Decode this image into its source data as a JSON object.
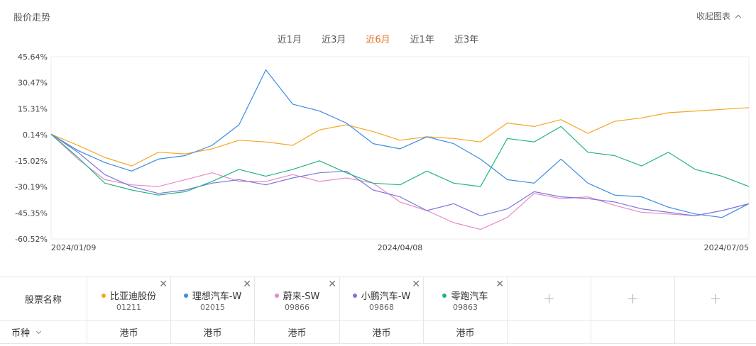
{
  "header": {
    "title": "股价走势",
    "collapse_label": "收起图表"
  },
  "tabs": [
    {
      "label": "近1月",
      "active": false
    },
    {
      "label": "近3月",
      "active": false
    },
    {
      "label": "近6月",
      "active": true
    },
    {
      "label": "近1年",
      "active": false
    },
    {
      "label": "近3年",
      "active": false
    }
  ],
  "colors": {
    "accent": "#e86f22",
    "grid": "#e6e6e6"
  },
  "chart_data": {
    "type": "line",
    "y_unit": "%",
    "y_ticks": [
      "45.64%",
      "30.47%",
      "15.31%",
      "0.14%",
      "-15.02%",
      "-30.19%",
      "-45.35%",
      "-60.52%"
    ],
    "y_tick_values": [
      45.64,
      30.47,
      15.31,
      0.14,
      -15.02,
      -30.19,
      -45.35,
      -60.52
    ],
    "ylim": [
      -60.52,
      45.64
    ],
    "x_ticks": [
      "2024/01/09",
      "2024/04/08",
      "2024/07/05"
    ],
    "x": [
      "2024/01/09",
      "2024/01/16",
      "2024/01/23",
      "2024/01/30",
      "2024/02/06",
      "2024/02/13",
      "2024/02/20",
      "2024/02/27",
      "2024/03/05",
      "2024/03/12",
      "2024/03/19",
      "2024/03/26",
      "2024/04/02",
      "2024/04/08",
      "2024/04/15",
      "2024/04/22",
      "2024/04/29",
      "2024/05/06",
      "2024/05/13",
      "2024/05/20",
      "2024/05/27",
      "2024/06/03",
      "2024/06/10",
      "2024/06/17",
      "2024/06/24",
      "2024/07/01",
      "2024/07/05"
    ],
    "series": [
      {
        "name": "比亚迪股份",
        "color": "#f5a623",
        "values": [
          0.5,
          -6,
          -13,
          -18,
          -10,
          -11,
          -8,
          -3,
          -4,
          -6,
          3,
          6,
          2,
          -3,
          -1,
          -2,
          -4,
          7,
          5,
          9,
          1,
          8,
          10,
          13,
          14,
          15,
          16
        ]
      },
      {
        "name": "理想汽车-W",
        "color": "#3b8ce3",
        "values": [
          0.5,
          -9,
          -16,
          -21,
          -14,
          -12,
          -6,
          6,
          38,
          18,
          14,
          7,
          -5,
          -8,
          -1,
          -5,
          -14,
          -26,
          -28,
          -14,
          -28,
          -35,
          -36,
          -42,
          -46,
          -48,
          -40
        ]
      },
      {
        "name": "蔚来-SW",
        "color": "#e889c7",
        "values": [
          0.5,
          -14,
          -26,
          -29,
          -30,
          -26,
          -22,
          -27,
          -27,
          -23,
          -27,
          -25,
          -28,
          -39,
          -44,
          -51,
          -55,
          -48,
          -34,
          -37,
          -36,
          -41,
          -45,
          -46,
          -47,
          -44,
          -40
        ]
      },
      {
        "name": "小鹏汽车-W",
        "color": "#7b76dd",
        "values": [
          0.5,
          -10,
          -23,
          -30,
          -34,
          -32,
          -28,
          -26,
          -29,
          -25,
          -22,
          -21,
          -32,
          -36,
          -44,
          -40,
          -47,
          -43,
          -33,
          -36,
          -37,
          -39,
          -43,
          -45,
          -47,
          -44,
          -40
        ]
      },
      {
        "name": "零跑汽车",
        "color": "#22b481",
        "values": [
          0.5,
          -13,
          -28,
          -32,
          -35,
          -33,
          -27,
          -20,
          -24,
          -20,
          -15,
          -22,
          -28,
          -29,
          -21,
          -28,
          -30,
          -2,
          -4,
          5,
          -10,
          -12,
          -18,
          -10,
          -20,
          -24,
          -30
        ]
      }
    ]
  },
  "table": {
    "row_label": "股票名称",
    "currency_label": "币种",
    "stocks": [
      {
        "name": "比亚迪股份",
        "code": "01211",
        "currency": "港币",
        "color": "#f5a623"
      },
      {
        "name": "理想汽车-W",
        "code": "02015",
        "currency": "港币",
        "color": "#3b8ce3"
      },
      {
        "name": "蔚来-SW",
        "code": "09866",
        "currency": "港币",
        "color": "#e889c7"
      },
      {
        "name": "小鹏汽车-W",
        "code": "09868",
        "currency": "港币",
        "color": "#7b76dd"
      },
      {
        "name": "零跑汽车",
        "code": "09863",
        "currency": "港币",
        "color": "#22b481"
      }
    ],
    "add_label": "+",
    "close_label": "✕"
  }
}
